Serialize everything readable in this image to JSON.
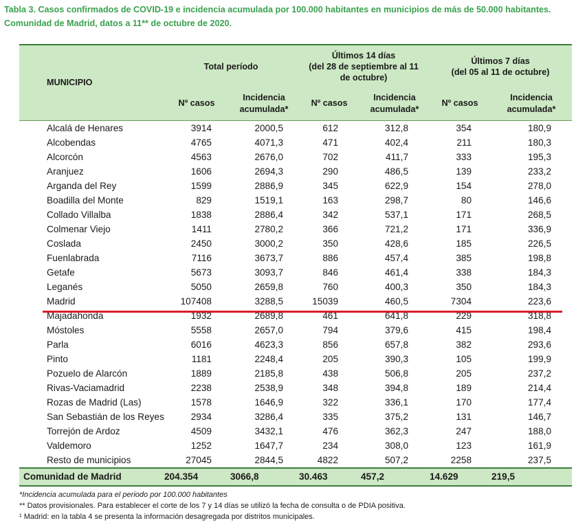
{
  "title": "Tabla 3. Casos confirmados de COVID-19 e incidencia acumulada por 100.000 habitantes en municipios de más de 50.000 habitantes. Comunidad de Madrid, datos a 11** de octubre de 2020.",
  "header": {
    "municipio": "MUNICIPIO",
    "total": "Total período",
    "last14_line1": "Últimos 14 días",
    "last14_line2": "(del 28 de septiembre al 11",
    "last14_line3": "de octubre)",
    "last7_line1": "Últimos 7 días",
    "last7_line2": "(del 05 al 11 de octubre)",
    "casos": "Nº casos",
    "incidencia_line1": "Incidencia",
    "incidencia_line2": "acumulada*"
  },
  "rows": [
    {
      "name": "Alcalá de Henares",
      "tc": "3914",
      "ti": "2000,5",
      "c14": "612",
      "i14": "312,8",
      "c7": "354",
      "i7": "180,9"
    },
    {
      "name": "Alcobendas",
      "tc": "4765",
      "ti": "4071,3",
      "c14": "471",
      "i14": "402,4",
      "c7": "211",
      "i7": "180,3"
    },
    {
      "name": "Alcorcón",
      "tc": "4563",
      "ti": "2676,0",
      "c14": "702",
      "i14": "411,7",
      "c7": "333",
      "i7": "195,3"
    },
    {
      "name": "Aranjuez",
      "tc": "1606",
      "ti": "2694,3",
      "c14": "290",
      "i14": "486,5",
      "c7": "139",
      "i7": "233,2"
    },
    {
      "name": "Arganda del Rey",
      "tc": "1599",
      "ti": "2886,9",
      "c14": "345",
      "i14": "622,9",
      "c7": "154",
      "i7": "278,0"
    },
    {
      "name": "Boadilla del Monte",
      "tc": "829",
      "ti": "1519,1",
      "c14": "163",
      "i14": "298,7",
      "c7": "80",
      "i7": "146,6"
    },
    {
      "name": "Collado Villalba",
      "tc": "1838",
      "ti": "2886,4",
      "c14": "342",
      "i14": "537,1",
      "c7": "171",
      "i7": "268,5"
    },
    {
      "name": "Colmenar Viejo",
      "tc": "1411",
      "ti": "2780,2",
      "c14": "366",
      "i14": "721,2",
      "c7": "171",
      "i7": "336,9"
    },
    {
      "name": "Coslada",
      "tc": "2450",
      "ti": "3000,2",
      "c14": "350",
      "i14": "428,6",
      "c7": "185",
      "i7": "226,5"
    },
    {
      "name": "Fuenlabrada",
      "tc": "7116",
      "ti": "3673,7",
      "c14": "886",
      "i14": "457,4",
      "c7": "385",
      "i7": "198,8"
    },
    {
      "name": "Getafe",
      "tc": "5673",
      "ti": "3093,7",
      "c14": "846",
      "i14": "461,4",
      "c7": "338",
      "i7": "184,3"
    },
    {
      "name": "Leganés",
      "tc": "5050",
      "ti": "2659,8",
      "c14": "760",
      "i14": "400,3",
      "c7": "350",
      "i7": "184,3"
    },
    {
      "name": "Madrid",
      "tc": "107408",
      "ti": "3288,5",
      "c14": "15039",
      "i14": "460,5",
      "c7": "7304",
      "i7": "223,6"
    },
    {
      "name": "Majadahonda",
      "tc": "1932",
      "ti": "2689,8",
      "c14": "461",
      "i14": "641,8",
      "c7": "229",
      "i7": "318,8"
    },
    {
      "name": "Móstoles",
      "tc": "5558",
      "ti": "2657,0",
      "c14": "794",
      "i14": "379,6",
      "c7": "415",
      "i7": "198,4"
    },
    {
      "name": "Parla",
      "tc": "6016",
      "ti": "4623,3",
      "c14": "856",
      "i14": "657,8",
      "c7": "382",
      "i7": "293,6"
    },
    {
      "name": "Pinto",
      "tc": "1181",
      "ti": "2248,4",
      "c14": "205",
      "i14": "390,3",
      "c7": "105",
      "i7": "199,9"
    },
    {
      "name": "Pozuelo de Alarcón",
      "tc": "1889",
      "ti": "2185,8",
      "c14": "438",
      "i14": "506,8",
      "c7": "205",
      "i7": "237,2"
    },
    {
      "name": "Rivas-Vaciamadrid",
      "tc": "2238",
      "ti": "2538,9",
      "c14": "348",
      "i14": "394,8",
      "c7": "189",
      "i7": "214,4"
    },
    {
      "name": "Rozas de Madrid (Las)",
      "tc": "1578",
      "ti": "1646,9",
      "c14": "322",
      "i14": "336,1",
      "c7": "170",
      "i7": "177,4"
    },
    {
      "name": "San Sebastián de los Reyes",
      "tc": "2934",
      "ti": "3286,4",
      "c14": "335",
      "i14": "375,2",
      "c7": "131",
      "i7": "146,7"
    },
    {
      "name": "Torrejón de Ardoz",
      "tc": "4509",
      "ti": "3432,1",
      "c14": "476",
      "i14": "362,3",
      "c7": "247",
      "i7": "188,0"
    },
    {
      "name": "Valdemoro",
      "tc": "1252",
      "ti": "1647,7",
      "c14": "234",
      "i14": "308,0",
      "c7": "123",
      "i7": "161,9"
    },
    {
      "name": "Resto de municipios",
      "tc": "27045",
      "ti": "2844,5",
      "c14": "4822",
      "i14": "507,2",
      "c7": "2258",
      "i7": "237,5"
    }
  ],
  "total": {
    "name": "Comunidad de Madrid",
    "tc": "204.354",
    "ti": "3066,8",
    "c14": "30.463",
    "i14": "457,2",
    "c7": "14.629",
    "i7": "219,5"
  },
  "notes": {
    "n1": "*Incidencia acumulada para el periodo por 100.000 habitantes",
    "n2": "** Datos provisionales. Para establecer el corte de los 7 y 14 días se utilizó la fecha de consulta o de PDIA positiva.",
    "n3": "¹ Madrid: en la tabla 4 se presenta la información desagregada por distritos municipales."
  },
  "colors": {
    "title": "#3aa14e",
    "header_bg": "#cde8c4",
    "highlight_line": "#d81f2a"
  }
}
